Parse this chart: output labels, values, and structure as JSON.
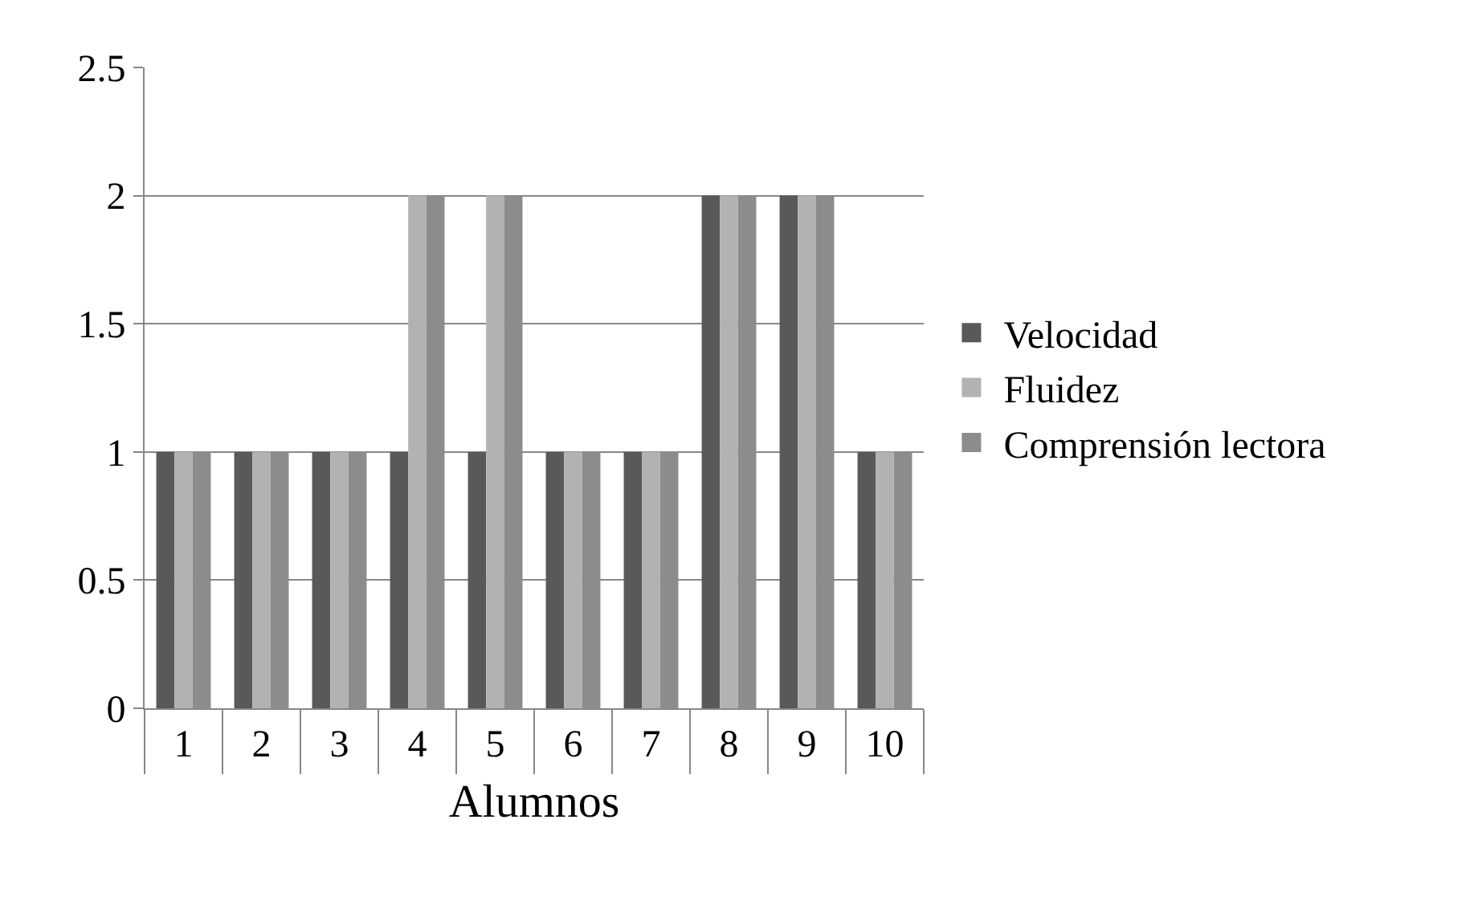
{
  "chart_data": {
    "type": "bar",
    "xlabel": "Alumnos",
    "categories": [
      "1",
      "2",
      "3",
      "4",
      "5",
      "6",
      "7",
      "8",
      "9",
      "10"
    ],
    "series": [
      {
        "name": "Velocidad",
        "color": "#595959",
        "values": [
          1,
          1,
          1,
          1,
          1,
          1,
          1,
          2,
          2,
          1
        ]
      },
      {
        "name": "Fluidez",
        "color": "#b2b2b2",
        "values": [
          1,
          1,
          1,
          2,
          2,
          1,
          1,
          2,
          2,
          1
        ]
      },
      {
        "name": "Comprensión lectora",
        "color": "#8c8c8c",
        "values": [
          1,
          1,
          1,
          2,
          2,
          1,
          1,
          2,
          2,
          1
        ]
      }
    ],
    "ylim": [
      0,
      2.5
    ],
    "yticks": [
      0,
      0.5,
      1,
      1.5,
      2,
      2.5
    ],
    "grid": "y",
    "legend": "right"
  }
}
